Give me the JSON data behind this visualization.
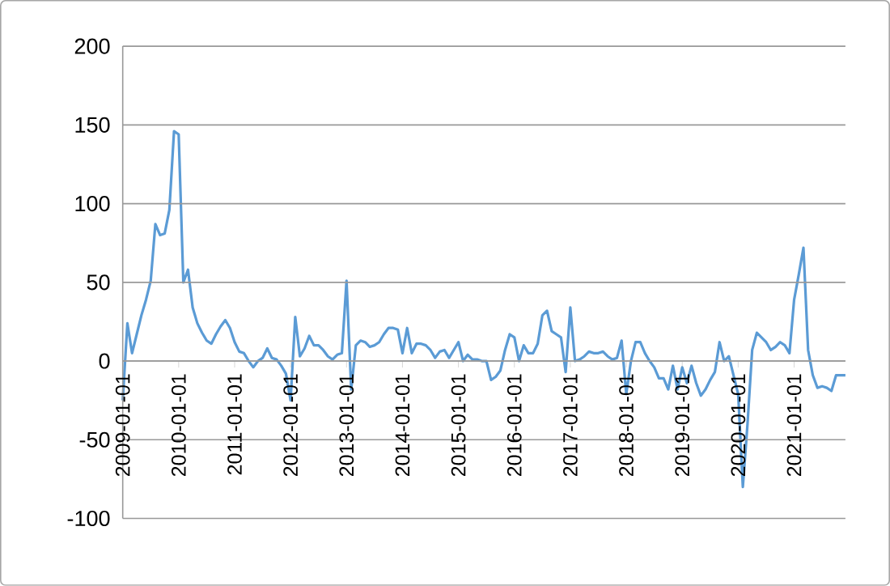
{
  "chart_data": {
    "type": "line",
    "x": [
      "2009-01",
      "2009-02",
      "2009-03",
      "2009-04",
      "2009-05",
      "2009-06",
      "2009-07",
      "2009-08",
      "2009-09",
      "2009-10",
      "2009-11",
      "2009-12",
      "2010-01",
      "2010-02",
      "2010-03",
      "2010-04",
      "2010-05",
      "2010-06",
      "2010-07",
      "2010-08",
      "2010-09",
      "2010-10",
      "2010-11",
      "2010-12",
      "2011-01",
      "2011-02",
      "2011-03",
      "2011-04",
      "2011-05",
      "2011-06",
      "2011-07",
      "2011-08",
      "2011-09",
      "2011-10",
      "2011-11",
      "2011-12",
      "2012-01",
      "2012-02",
      "2012-03",
      "2012-04",
      "2012-05",
      "2012-06",
      "2012-07",
      "2012-08",
      "2012-09",
      "2012-10",
      "2012-11",
      "2012-12",
      "2013-01",
      "2013-02",
      "2013-03",
      "2013-04",
      "2013-05",
      "2013-06",
      "2013-07",
      "2013-08",
      "2013-09",
      "2013-10",
      "2013-11",
      "2013-12",
      "2014-01",
      "2014-02",
      "2014-03",
      "2014-04",
      "2014-05",
      "2014-06",
      "2014-07",
      "2014-08",
      "2014-09",
      "2014-10",
      "2014-11",
      "2014-12",
      "2015-01",
      "2015-02",
      "2015-03",
      "2015-04",
      "2015-05",
      "2015-06",
      "2015-07",
      "2015-08",
      "2015-09",
      "2015-10",
      "2015-11",
      "2015-12",
      "2016-01",
      "2016-02",
      "2016-03",
      "2016-04",
      "2016-05",
      "2016-06",
      "2016-07",
      "2016-08",
      "2016-09",
      "2016-10",
      "2016-11",
      "2016-12",
      "2017-01",
      "2017-02",
      "2017-03",
      "2017-04",
      "2017-05",
      "2017-06",
      "2017-07",
      "2017-08",
      "2017-09",
      "2017-10",
      "2017-11",
      "2017-12",
      "2018-01",
      "2018-02",
      "2018-03",
      "2018-04",
      "2018-05",
      "2018-06",
      "2018-07",
      "2018-08",
      "2018-09",
      "2018-10",
      "2018-11",
      "2018-12",
      "2019-01",
      "2019-02",
      "2019-03",
      "2019-04",
      "2019-05",
      "2019-06",
      "2019-07",
      "2019-08",
      "2019-09",
      "2019-10",
      "2019-11",
      "2019-12",
      "2020-01",
      "2020-02",
      "2020-03",
      "2020-04",
      "2020-05",
      "2020-06",
      "2020-07",
      "2020-08",
      "2020-09",
      "2020-10",
      "2020-11",
      "2020-12",
      "2021-01",
      "2021-02",
      "2021-03",
      "2021-04",
      "2021-05",
      "2021-06",
      "2021-07",
      "2021-08",
      "2021-09",
      "2021-10",
      "2021-11",
      "2021-12"
    ],
    "series": [
      {
        "color": "#5b9bd5",
        "values": [
          -25,
          24,
          5,
          17,
          29,
          39,
          51,
          87,
          80,
          81,
          96,
          146,
          144,
          50,
          58,
          34,
          24,
          18,
          13,
          11,
          17,
          22,
          26,
          21,
          12,
          6,
          5,
          0,
          -4,
          0,
          2,
          8,
          2,
          1,
          -3,
          -8,
          -25,
          28,
          3,
          8,
          16,
          10,
          10,
          7,
          3,
          1,
          4,
          5,
          51,
          -18,
          10,
          13,
          12,
          9,
          10,
          12,
          17,
          21,
          21,
          20,
          5,
          21,
          5,
          11,
          11,
          10,
          7,
          2,
          6,
          7,
          2,
          7,
          12,
          0,
          4,
          1,
          1,
          0,
          0,
          -12,
          -10,
          -6,
          7,
          17,
          15,
          0,
          10,
          5,
          5,
          11,
          29,
          32,
          19,
          17,
          15,
          -7,
          34,
          0,
          1,
          3,
          6,
          5,
          5,
          6,
          3,
          1,
          2,
          13,
          -21,
          0,
          12,
          12,
          5,
          0,
          -4,
          -11,
          -11,
          -18,
          -3,
          -18,
          -4,
          -14,
          -3,
          -14,
          -22,
          -18,
          -12,
          -7,
          12,
          0,
          3,
          -9,
          -21,
          -80,
          -40,
          7,
          18,
          15,
          12,
          7,
          9,
          12,
          10,
          5,
          39,
          55,
          72,
          7,
          -9,
          -17,
          -16,
          -17,
          -19,
          -9,
          -9,
          -9
        ]
      }
    ],
    "xlim": [
      "2009-01",
      "2021-12"
    ],
    "xticks": [
      "2009-01-01",
      "2010-01-01",
      "2011-01-01",
      "2012-01-01",
      "2013-01-01",
      "2014-01-01",
      "2015-01-01",
      "2016-01-01",
      "2017-01-01",
      "2018-01-01",
      "2019-01-01",
      "2020-01-01",
      "2021-01-01"
    ],
    "ylim": [
      -100,
      200
    ],
    "yticks": [
      -100,
      -50,
      0,
      50,
      100,
      150,
      200
    ],
    "grid": "y",
    "marker": "none",
    "line_style": "solid"
  }
}
